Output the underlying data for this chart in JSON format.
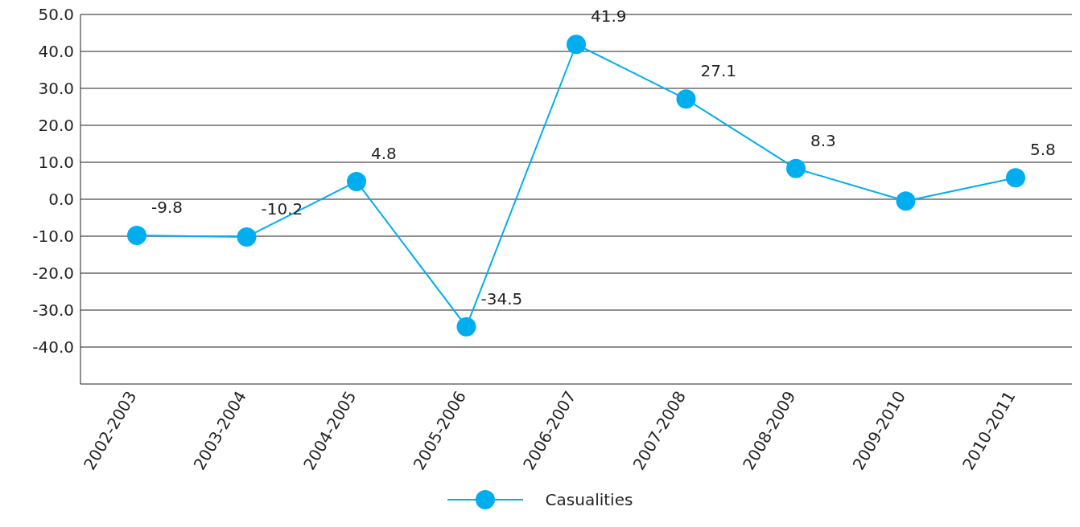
{
  "chart_data": {
    "type": "line",
    "categories": [
      "2002-2003",
      "2003-2004",
      "2004-2005",
      "2005-2006",
      "2006-2007",
      "2007-2008",
      "2008-2009",
      "2009-2010",
      "2010-2011"
    ],
    "series": [
      {
        "name": "Casualities",
        "color": "#00aeef",
        "values": [
          -9.8,
          -10.2,
          4.8,
          -34.5,
          41.9,
          27.1,
          8.3,
          -0.5,
          5.8
        ],
        "value_labels": [
          "-9.8",
          "-10.2",
          "4.8",
          "-34.5",
          "41.9",
          "27.1",
          "8.3",
          null,
          "5.8"
        ]
      }
    ],
    "ylim": [
      -50,
      50
    ],
    "yticks": [
      {
        "value": -40,
        "label": "-40.0"
      },
      {
        "value": -30,
        "label": "-30.0"
      },
      {
        "value": -20,
        "label": "-20.0"
      },
      {
        "value": -10,
        "label": "-10.0"
      },
      {
        "value": 0,
        "label": "0.0"
      },
      {
        "value": 10,
        "label": "10.0"
      },
      {
        "value": 20,
        "label": "20.0"
      },
      {
        "value": 30,
        "label": "30.0"
      },
      {
        "value": 40,
        "label": "40.0"
      },
      {
        "value": 50,
        "label": "50.0"
      }
    ],
    "grid": "y",
    "legend": "bottom",
    "marker": "circle",
    "line_style": "solid"
  }
}
